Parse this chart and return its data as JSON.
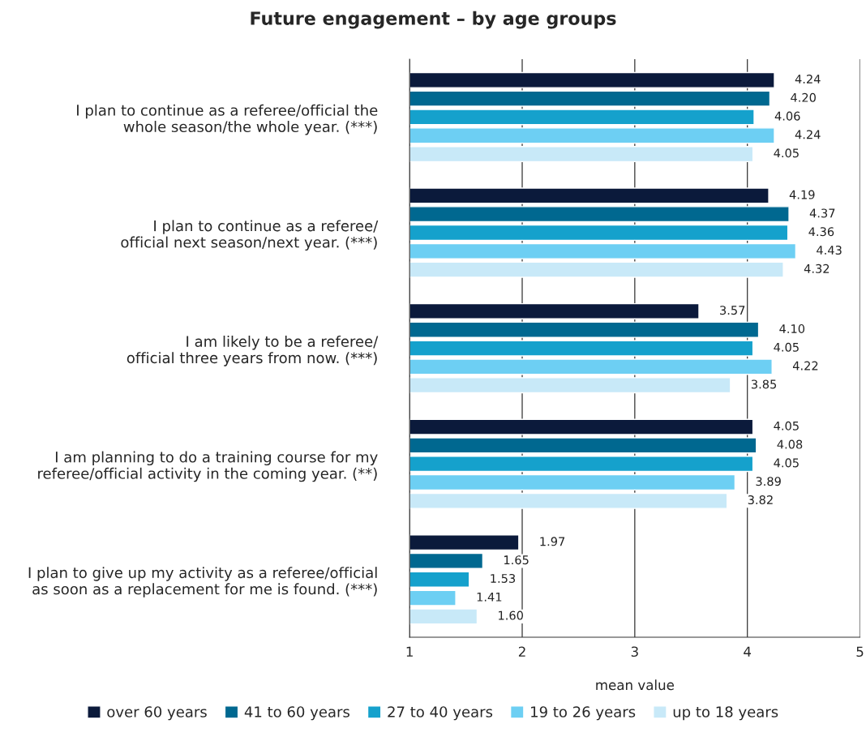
{
  "chart_data": {
    "type": "bar",
    "orientation": "horizontal",
    "title": "Future engagement – by age groups",
    "xlabel": "mean value",
    "categories": [
      "I plan to continue as a referee/official the\nwhole season/the whole year. (***)",
      "I plan to continue as a referee/\nofficial next season/next year. (***)",
      "I am likely to be a referee/\nofficial three years from now. (***)",
      "I am planning to do a training course for my\nreferee/official activity in the coming year. (**)",
      "I plan to give up my activity as a referee/official\nas soon as a replacement for me is found. (***)"
    ],
    "series": [
      {
        "name": "over 60 years",
        "color": "#0b1a3b",
        "values": [
          4.24,
          4.19,
          3.57,
          4.05,
          1.97
        ],
        "value_labels": [
          "4.24",
          "4.19",
          "3.57",
          "4.05",
          "1.97"
        ]
      },
      {
        "name": "41 to 60 years",
        "color": "#006890",
        "values": [
          4.2,
          4.37,
          4.1,
          4.08,
          1.65
        ],
        "value_labels": [
          "4.20",
          "4.37",
          "4.10",
          "4.08",
          "1.65"
        ]
      },
      {
        "name": "27 to 40 years",
        "color": "#15a1cc",
        "values": [
          4.06,
          4.36,
          4.05,
          4.05,
          1.53
        ],
        "value_labels": [
          "4.06",
          "4.36",
          "4.05",
          "4.05",
          "1.53"
        ]
      },
      {
        "name": "19 to 26 years",
        "color": "#6dcff3",
        "values": [
          4.24,
          4.43,
          4.22,
          3.89,
          1.41
        ],
        "value_labels": [
          "4.24",
          "4.43",
          "4.22",
          "3.89",
          "1.41"
        ]
      },
      {
        "name": "up to 18 years",
        "color": "#c8e9f8",
        "values": [
          4.05,
          4.32,
          3.85,
          3.82,
          1.6
        ],
        "value_labels": [
          "4.05",
          "4.32",
          "3.85",
          "3.82",
          "1.60"
        ]
      }
    ],
    "xlim": [
      1,
      5
    ],
    "xticks": [
      1,
      2,
      3,
      4,
      5
    ],
    "grid": "x",
    "legend": "bottom"
  }
}
